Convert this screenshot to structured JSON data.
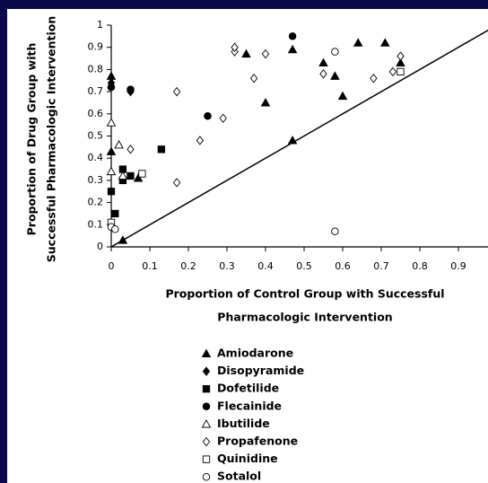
{
  "chart_data": {
    "type": "scatter",
    "x_label": [
      "Proportion of Control Group with Successful",
      "Pharmacologic Intervention"
    ],
    "y_label": [
      "Proportion of Drug Group with",
      "Successful Pharmacologic Intervention"
    ],
    "xlim": [
      0,
      1
    ],
    "ylim": [
      0,
      1
    ],
    "xticks": [
      0,
      0.1,
      0.2,
      0.3,
      0.4,
      0.5,
      0.6,
      0.7,
      0.8,
      0.9
    ],
    "yticks": [
      0,
      0.1,
      0.2,
      0.3,
      0.4,
      0.5,
      0.6,
      0.7,
      0.8,
      0.9,
      1
    ],
    "series": [
      {
        "name": "Amiodarone",
        "color": "#000000",
        "marker": "triangle",
        "filled": true,
        "x": [
          0,
          0,
          0.03,
          0.07,
          0.35,
          0.4,
          0.47,
          0.47,
          0.55,
          0.58,
          0.6,
          0.64,
          0.71,
          0.75
        ],
        "y": [
          0.77,
          0.43,
          0.03,
          0.31,
          0.87,
          0.65,
          0.89,
          0.48,
          0.83,
          0.77,
          0.68,
          0.92,
          0.92,
          0.83
        ]
      },
      {
        "name": "Disopyramide",
        "color": "#000000",
        "marker": "diamond",
        "filled": true,
        "x": [
          0,
          0.05
        ],
        "y": [
          0.74,
          0.7
        ]
      },
      {
        "name": "Dofetilide",
        "color": "#000000",
        "marker": "square",
        "filled": true,
        "x": [
          0,
          0.01,
          0.03,
          0.03,
          0.05,
          0.13
        ],
        "y": [
          0.25,
          0.15,
          0.35,
          0.3,
          0.32,
          0.44
        ]
      },
      {
        "name": "Flecainide",
        "color": "#000000",
        "marker": "circle",
        "filled": true,
        "x": [
          0,
          0.05,
          0.25,
          0.47
        ],
        "y": [
          0.72,
          0.71,
          0.59,
          0.95
        ]
      },
      {
        "name": "Ibutilide",
        "color": "#000000",
        "marker": "triangle",
        "filled": false,
        "x": [
          0,
          0,
          0.02,
          0.03
        ],
        "y": [
          0.56,
          0.34,
          0.46,
          0.32
        ]
      },
      {
        "name": "Propafenone",
        "color": "#000000",
        "marker": "diamond",
        "filled": false,
        "x": [
          0.05,
          0.17,
          0.17,
          0.23,
          0.29,
          0.32,
          0.32,
          0.37,
          0.4,
          0.55,
          0.68,
          0.73,
          0.75
        ],
        "y": [
          0.44,
          0.7,
          0.29,
          0.48,
          0.58,
          0.88,
          0.9,
          0.76,
          0.87,
          0.78,
          0.76,
          0.79,
          0.86
        ]
      },
      {
        "name": "Quinidine",
        "color": "#000000",
        "marker": "square",
        "filled": false,
        "x": [
          0,
          0.08,
          0.75
        ],
        "y": [
          0.11,
          0.33,
          0.79
        ]
      },
      {
        "name": "Sotalol",
        "color": "#000000",
        "marker": "circle",
        "filled": false,
        "x": [
          0,
          0.01,
          0.58,
          0.58
        ],
        "y": [
          0.09,
          0.08,
          0.88,
          0.07
        ]
      }
    ]
  }
}
